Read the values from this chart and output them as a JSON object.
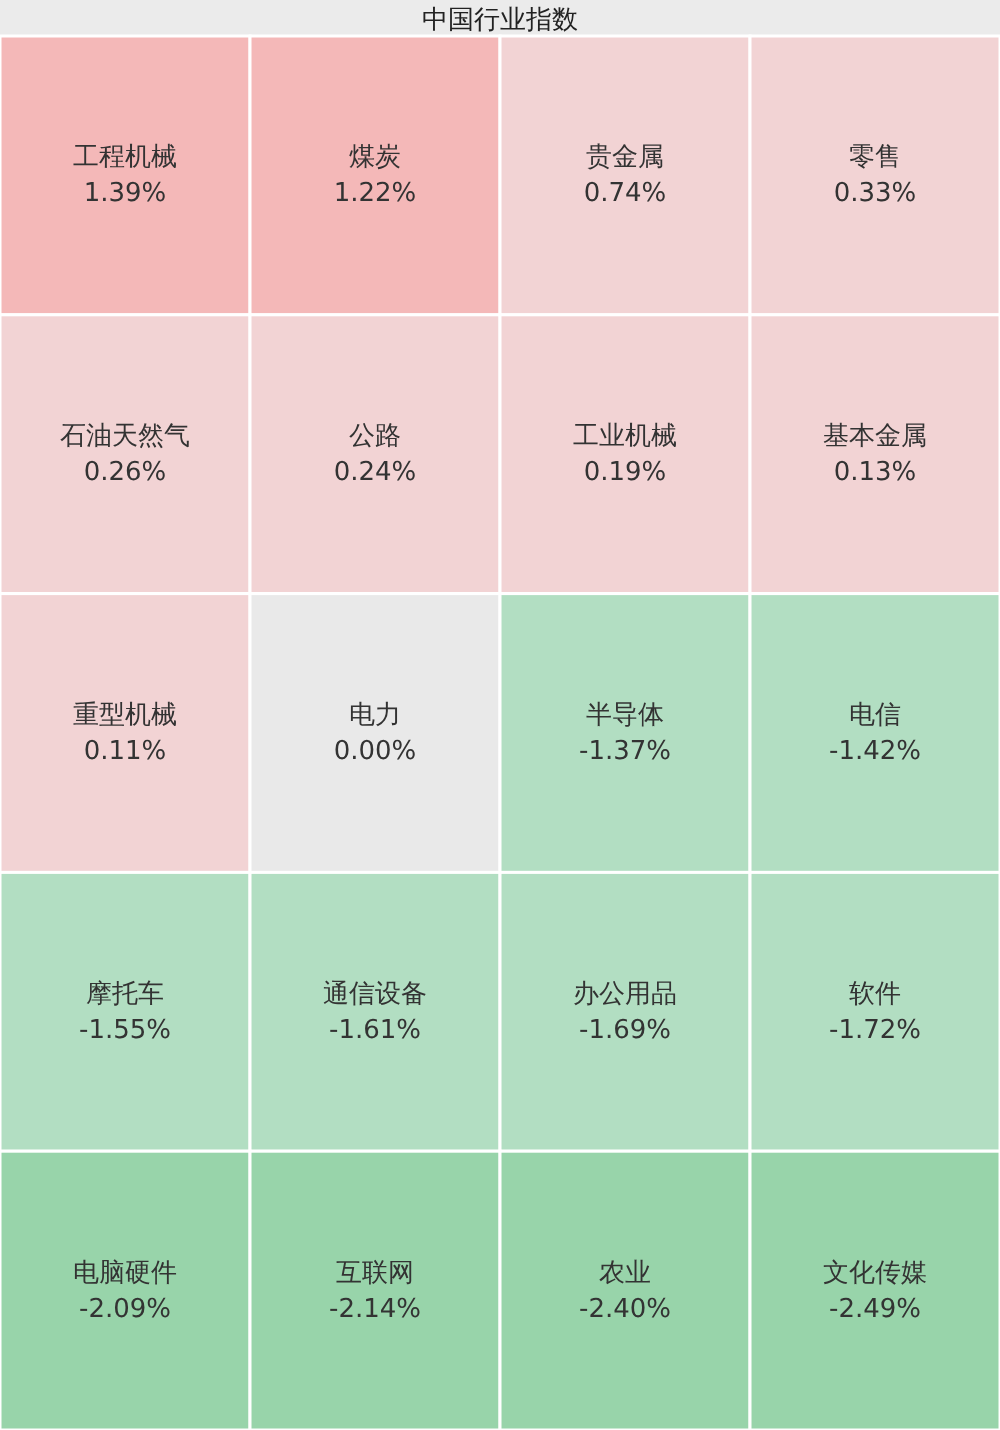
{
  "chart_data": {
    "type": "other",
    "title": "中国行业指数",
    "categories": [
      "工程机械",
      "煤炭",
      "贵金属",
      "零售",
      "石油天然气",
      "公路",
      "工业机械",
      "基本金属",
      "重型机械",
      "电力",
      "半导体",
      "电信",
      "摩托车",
      "通信设备",
      "办公用品",
      "软件",
      "电脑硬件",
      "互联网",
      "农业",
      "文化传媒"
    ],
    "values": [
      1.39,
      1.22,
      0.74,
      0.33,
      0.26,
      0.24,
      0.19,
      0.13,
      0.11,
      0.0,
      -1.37,
      -1.42,
      -1.55,
      -1.61,
      -1.69,
      -1.72,
      -2.09,
      -2.14,
      -2.4,
      -2.49
    ],
    "value_labels": [
      "1.39%",
      "1.22%",
      "0.74%",
      "0.33%",
      "0.26%",
      "0.24%",
      "0.19%",
      "0.13%",
      "0.11%",
      "0.00%",
      "-1.37%",
      "-1.42%",
      "-1.55%",
      "-1.61%",
      "-1.69%",
      "-1.72%",
      "-2.09%",
      "-2.14%",
      "-2.40%",
      "-2.49%"
    ]
  }
}
